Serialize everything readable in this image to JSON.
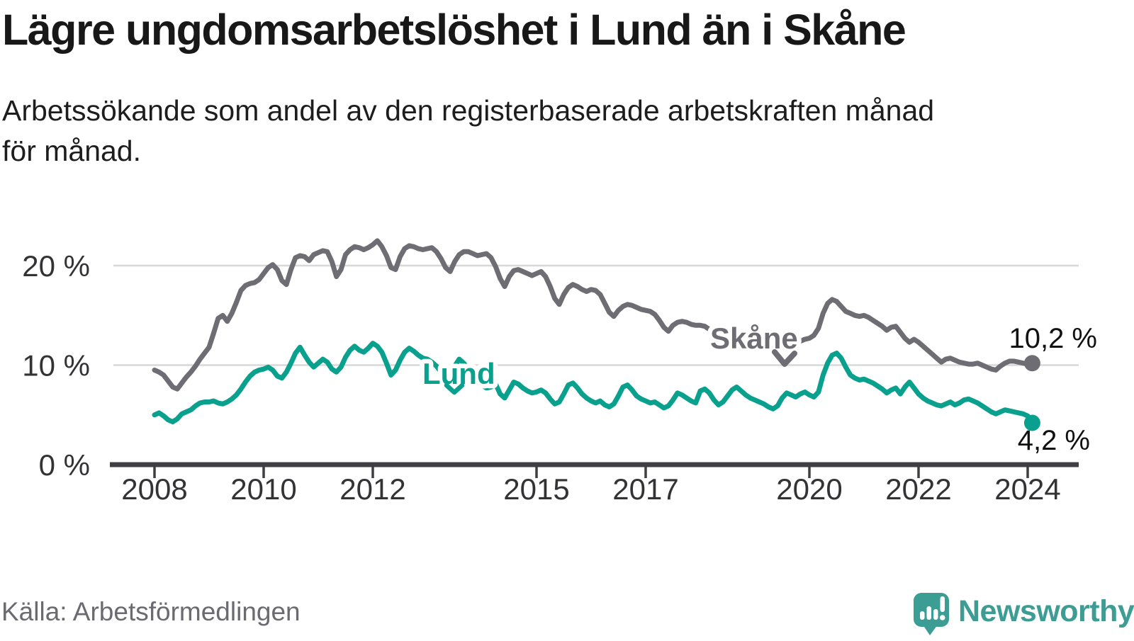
{
  "header": {
    "title": "Lägre ungdomsarbetslöshet i Lund än i Skåne",
    "subtitle_line1": "Arbetssökande som andel av den registerbaserade arbetskraften månad",
    "subtitle_line2": "för månad."
  },
  "footer": {
    "source": "Källa: Arbetsförmedlingen",
    "brand": "Newsworthy",
    "brand_icon": "newsworthy-pin-barchart-icon",
    "brand_color": "#3c9d94"
  },
  "colors": {
    "skane_line": "#6f6d74",
    "lund_line": "#0aa08e",
    "gridline": "#d8d8d8",
    "axis": "#3f3e42",
    "text": "#1a1a1a",
    "muted_text": "#6a6a70"
  },
  "chart_data": {
    "type": "line",
    "title": "Lägre ungdomsarbetslöshet i Lund än i Skåne",
    "xlabel": "",
    "ylabel": "Arbetssökande som andel av den registerbaserade arbetskraften",
    "x_start": "2008-01",
    "x_end": "2024-02",
    "x_frequency": "monthly",
    "ylim": [
      0,
      23.5
    ],
    "grid": true,
    "legend_position": "inline-annotations",
    "y_ticks": [
      {
        "value": 0,
        "label": "0 %"
      },
      {
        "value": 10,
        "label": "10 %"
      },
      {
        "value": 20,
        "label": "20 %"
      }
    ],
    "x_ticks": [
      {
        "year": 2008,
        "label": "2008"
      },
      {
        "year": 2010,
        "label": "2010"
      },
      {
        "year": 2012,
        "label": "2012"
      },
      {
        "year": 2015,
        "label": "2015"
      },
      {
        "year": 2017,
        "label": "2017"
      },
      {
        "year": 2020,
        "label": "2020"
      },
      {
        "year": 2022,
        "label": "2022"
      },
      {
        "year": 2024,
        "label": "2024"
      }
    ],
    "series": [
      {
        "name": "Skåne",
        "color": "#6f6d74",
        "end_value": 10.2,
        "end_label": "10,2 %",
        "values": [
          9.5,
          9.3,
          9.0,
          8.4,
          7.8,
          7.6,
          8.2,
          8.8,
          9.3,
          9.9,
          10.6,
          11.2,
          11.8,
          13.2,
          14.7,
          15.0,
          14.4,
          15.2,
          16.3,
          17.5,
          18.0,
          18.2,
          18.3,
          18.6,
          19.2,
          19.8,
          20.1,
          19.6,
          18.5,
          18.1,
          19.6,
          20.8,
          21.0,
          20.9,
          20.5,
          21.1,
          21.3,
          21.5,
          21.4,
          20.4,
          18.9,
          19.6,
          21.1,
          21.6,
          21.9,
          21.8,
          21.6,
          21.8,
          22.1,
          22.5,
          21.9,
          21.0,
          19.8,
          19.6,
          20.9,
          21.7,
          22.0,
          21.9,
          21.7,
          21.6,
          21.7,
          21.8,
          21.4,
          20.7,
          19.8,
          19.4,
          20.4,
          21.1,
          21.4,
          21.4,
          21.2,
          21.0,
          21.1,
          21.2,
          20.8,
          19.9,
          18.7,
          17.9,
          18.9,
          19.5,
          19.6,
          19.4,
          19.2,
          19.0,
          19.2,
          19.4,
          18.9,
          17.9,
          16.7,
          16.1,
          17.1,
          17.8,
          18.1,
          17.9,
          17.6,
          17.4,
          17.6,
          17.5,
          17.1,
          16.2,
          15.3,
          14.9,
          15.5,
          15.9,
          16.1,
          16.0,
          15.8,
          15.6,
          15.5,
          15.4,
          15.1,
          14.5,
          13.8,
          13.4,
          14.0,
          14.3,
          14.4,
          14.3,
          14.1,
          14.0,
          14.0,
          13.9,
          13.6,
          13.1,
          12.6,
          12.4,
          12.8,
          13.0,
          13.1,
          13.0,
          12.9,
          12.8,
          12.8,
          12.7,
          12.5,
          12.2,
          12.0,
          12.1,
          12.5,
          12.6,
          12.6,
          12.5,
          12.4,
          12.6,
          12.7,
          13.0,
          13.7,
          15.2,
          16.2,
          16.6,
          16.4,
          15.9,
          15.4,
          15.2,
          15.0,
          14.9,
          15.0,
          14.8,
          14.5,
          14.2,
          13.9,
          13.5,
          13.8,
          13.9,
          13.3,
          12.7,
          12.3,
          12.6,
          12.3,
          11.9,
          11.5,
          11.1,
          10.7,
          10.3,
          10.6,
          10.7,
          10.5,
          10.3,
          10.2,
          10.1,
          10.1,
          10.2,
          10.0,
          9.8,
          9.6,
          9.5,
          9.9,
          10.2,
          10.4,
          10.4,
          10.3,
          10.2,
          10.1,
          10.2
        ]
      },
      {
        "name": "Lund",
        "color": "#0aa08e",
        "end_value": 4.2,
        "end_label": "4,2 %",
        "values": [
          5.0,
          5.2,
          4.9,
          4.5,
          4.3,
          4.6,
          5.1,
          5.3,
          5.5,
          5.9,
          6.2,
          6.3,
          6.3,
          6.4,
          6.2,
          6.1,
          6.3,
          6.6,
          7.0,
          7.6,
          8.3,
          8.9,
          9.3,
          9.5,
          9.6,
          9.8,
          9.5,
          8.9,
          8.7,
          9.3,
          10.2,
          11.2,
          11.8,
          11.0,
          10.3,
          9.8,
          10.2,
          10.6,
          10.3,
          9.6,
          9.3,
          9.8,
          10.8,
          11.5,
          11.9,
          11.5,
          11.3,
          11.7,
          12.2,
          11.9,
          11.3,
          10.2,
          9.0,
          9.5,
          10.5,
          11.3,
          11.7,
          11.4,
          11.0,
          10.7,
          10.6,
          10.3,
          9.9,
          9.3,
          8.7,
          9.0,
          9.9,
          10.6,
          10.2,
          9.6,
          9.0,
          8.5,
          8.0,
          7.7,
          7.8,
          8.1,
          7.1,
          6.7,
          7.5,
          8.3,
          8.1,
          7.7,
          7.4,
          7.2,
          7.3,
          7.5,
          7.2,
          6.6,
          6.1,
          6.3,
          7.1,
          8.0,
          8.2,
          7.7,
          7.1,
          6.7,
          6.4,
          6.2,
          6.4,
          6.0,
          5.8,
          6.1,
          6.9,
          7.8,
          8.0,
          7.5,
          6.9,
          6.6,
          6.4,
          6.2,
          6.3,
          6.0,
          5.7,
          5.9,
          6.5,
          7.2,
          7.0,
          6.7,
          6.4,
          6.2,
          7.4,
          7.6,
          7.2,
          6.5,
          6.0,
          6.3,
          6.9,
          7.5,
          7.8,
          7.4,
          7.0,
          6.7,
          6.5,
          6.3,
          6.1,
          5.8,
          5.6,
          5.9,
          6.7,
          7.2,
          7.0,
          6.8,
          7.1,
          7.3,
          7.0,
          6.8,
          7.3,
          9.0,
          10.2,
          11.0,
          11.2,
          10.7,
          9.8,
          9.0,
          8.7,
          8.5,
          8.6,
          8.4,
          8.2,
          7.9,
          7.6,
          7.2,
          7.5,
          7.7,
          7.1,
          7.8,
          8.3,
          7.7,
          7.1,
          6.7,
          6.4,
          6.2,
          6.0,
          5.9,
          6.1,
          6.3,
          6.0,
          6.2,
          6.5,
          6.6,
          6.4,
          6.2,
          5.9,
          5.6,
          5.3,
          5.1,
          5.3,
          5.5,
          5.4,
          5.3,
          5.2,
          5.1,
          4.9,
          4.2
        ]
      }
    ]
  }
}
